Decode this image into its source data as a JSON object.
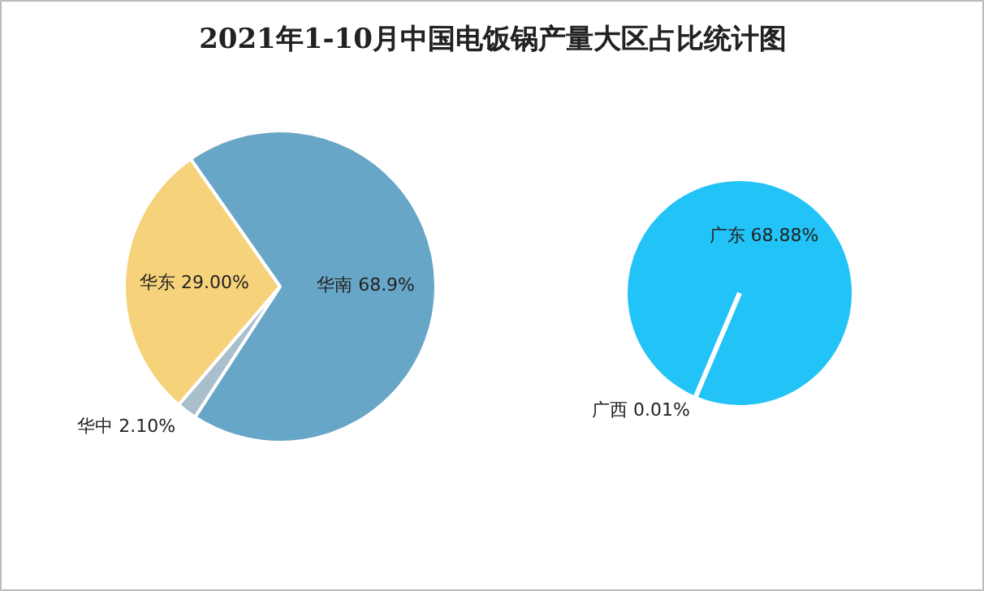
{
  "chart_data": [
    {
      "type": "pie",
      "title": "2021年1-10月中国电饭锅产量大区占比统计图",
      "categories": [
        "华东",
        "华中",
        "华南"
      ],
      "values": [
        29.0,
        2.1,
        68.9
      ],
      "colors": [
        "#f6d37a",
        "#a9bfcc",
        "#68a6c7"
      ],
      "value_labels": [
        "29.00%",
        "2.10%",
        "68.9%"
      ]
    },
    {
      "type": "pie",
      "categories": [
        "广西",
        "广东"
      ],
      "values": [
        0.01,
        68.88
      ],
      "colors": [
        "#ffffff",
        "#22c3f7"
      ],
      "value_labels": [
        "0.01%",
        "68.88%"
      ]
    }
  ]
}
